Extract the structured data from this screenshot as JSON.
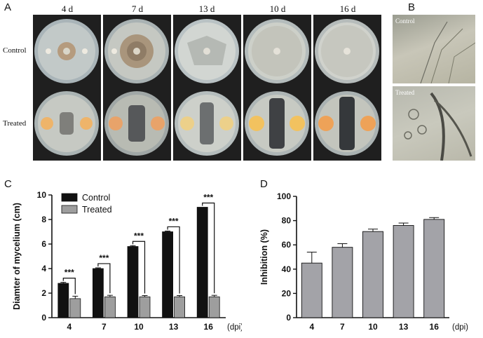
{
  "panels": {
    "a": {
      "letter": "A",
      "days": [
        "4 d",
        "7 d",
        "13 d",
        "10 d",
        "16 d"
      ],
      "rows": [
        "Control",
        "Treated"
      ]
    },
    "b": {
      "letter": "B",
      "labels": [
        "Control",
        "Treated"
      ]
    },
    "c": {
      "letter": "C"
    },
    "d": {
      "letter": "D"
    }
  },
  "colors": {
    "control": "#111111",
    "treated": "#9e9e9e",
    "inhibition": "#a3a3a8"
  },
  "chart_data": [
    {
      "type": "bar",
      "categories": [
        "4",
        "7",
        "10",
        "13",
        "16"
      ],
      "x_unit": "(dpi)",
      "ylabel": "Diamter of mycelium (cm)",
      "ylim": [
        0,
        10
      ],
      "yticks": [
        "0",
        "2",
        "4",
        "6",
        "8",
        "10"
      ],
      "legend": "top-left",
      "significance": [
        "***",
        "***",
        "***",
        "***",
        "***"
      ],
      "series": [
        {
          "name": "Control",
          "values": [
            2.8,
            4.0,
            5.8,
            7.0,
            9.0
          ],
          "errors": [
            0.08,
            0.06,
            0.07,
            0.06,
            0.0
          ]
        },
        {
          "name": "Treated",
          "values": [
            1.55,
            1.7,
            1.7,
            1.7,
            1.7
          ],
          "errors": [
            0.2,
            0.12,
            0.1,
            0.1,
            0.12
          ]
        }
      ]
    },
    {
      "type": "bar",
      "categories": [
        "4",
        "7",
        "10",
        "13",
        "16"
      ],
      "x_unit": "(dpi)",
      "ylabel": "Inhibition (%)",
      "ylim": [
        0,
        100
      ],
      "yticks": [
        "0",
        "20",
        "40",
        "60",
        "80",
        "100"
      ],
      "series": [
        {
          "values": [
            45,
            58,
            71,
            76,
            81
          ],
          "errors": [
            9,
            3,
            2,
            2,
            1.5
          ]
        }
      ]
    }
  ]
}
